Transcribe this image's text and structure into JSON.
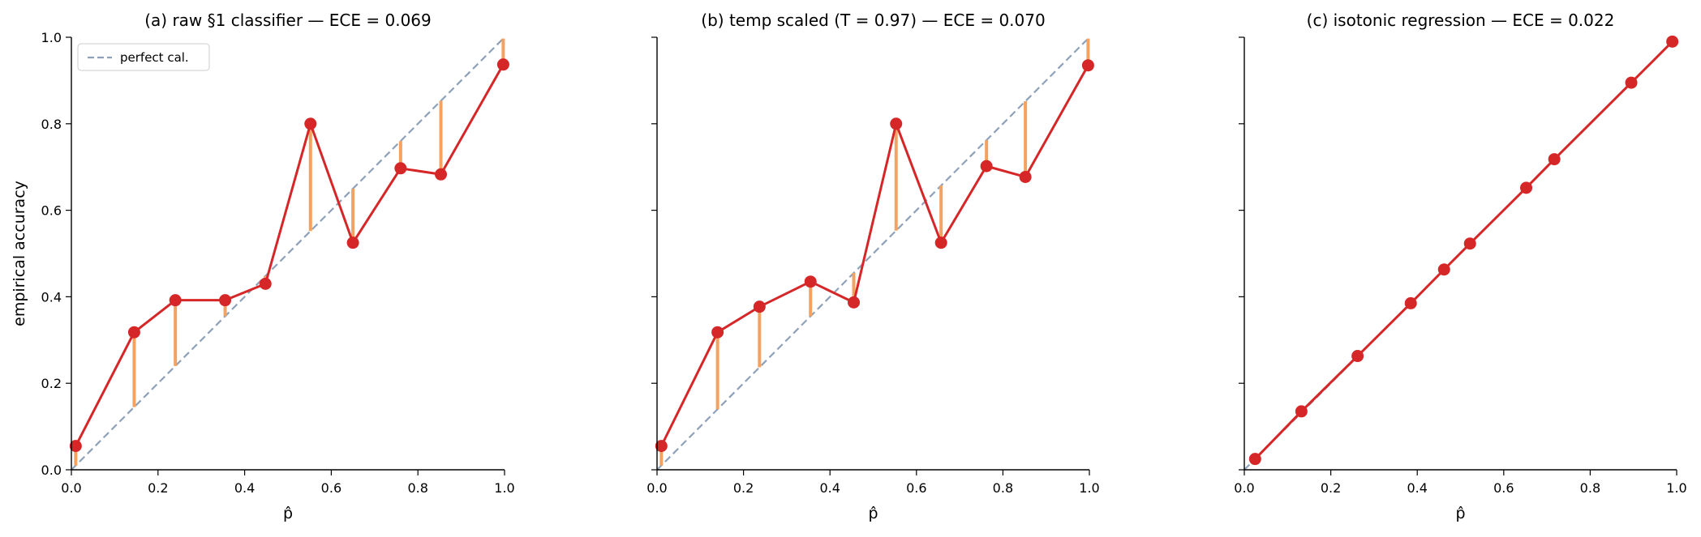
{
  "colors": {
    "curve": "#d62728",
    "gap": "#f4a261",
    "diagonal": "#8fa1b8",
    "axis": "#000000"
  },
  "legend": {
    "label": "perfect cal."
  },
  "chart_data": [
    {
      "type": "line",
      "title": "(a) raw §1 classifier — ECE = 0.069",
      "xlabel": "p̂",
      "ylabel": "empirical accuracy",
      "xlim": [
        0,
        1
      ],
      "ylim": [
        0,
        1
      ],
      "xticks": [
        "0.0",
        "0.2",
        "0.4",
        "0.6",
        "0.8",
        "1.0"
      ],
      "yticks": [
        "0.0",
        "0.2",
        "0.4",
        "0.6",
        "0.8",
        "1.0"
      ],
      "show_yticklabels": true,
      "legend": true,
      "legend_position": "top-left",
      "series": [
        {
          "x": [
            0.01,
            0.145,
            0.24,
            0.355,
            0.448,
            0.552,
            0.65,
            0.76,
            0.853,
            0.997
          ],
          "y": [
            0.055,
            0.318,
            0.392,
            0.392,
            0.43,
            0.8,
            0.525,
            0.697,
            0.683,
            0.937
          ]
        }
      ]
    },
    {
      "type": "line",
      "title": "(b) temp scaled (T = 0.97) — ECE = 0.070",
      "xlabel": "p̂",
      "ylabel": "",
      "xlim": [
        0,
        1
      ],
      "ylim": [
        0,
        1
      ],
      "xticks": [
        "0.0",
        "0.2",
        "0.4",
        "0.6",
        "0.8",
        "1.0"
      ],
      "yticks": [
        "",
        "",
        "",
        "",
        "",
        ""
      ],
      "show_yticklabels": false,
      "legend": false,
      "series": [
        {
          "x": [
            0.01,
            0.14,
            0.237,
            0.355,
            0.455,
            0.553,
            0.657,
            0.762,
            0.852,
            0.997
          ],
          "y": [
            0.055,
            0.318,
            0.377,
            0.435,
            0.387,
            0.8,
            0.525,
            0.702,
            0.677,
            0.935
          ]
        }
      ]
    },
    {
      "type": "line",
      "title": "(c) isotonic regression — ECE = 0.022",
      "xlabel": "p̂",
      "ylabel": "",
      "xlim": [
        0,
        1
      ],
      "ylim": [
        0,
        1
      ],
      "xticks": [
        "0.0",
        "0.2",
        "0.4",
        "0.6",
        "0.8",
        "1.0"
      ],
      "yticks": [
        "",
        "",
        "",
        "",
        "",
        ""
      ],
      "show_yticklabels": false,
      "legend": false,
      "series": [
        {
          "x": [
            0.025,
            0.132,
            0.262,
            0.385,
            0.462,
            0.522,
            0.652,
            0.717,
            0.895,
            0.99
          ],
          "y": [
            0.025,
            0.135,
            0.263,
            0.385,
            0.463,
            0.523,
            0.652,
            0.718,
            0.895,
            0.99
          ]
        }
      ]
    }
  ]
}
